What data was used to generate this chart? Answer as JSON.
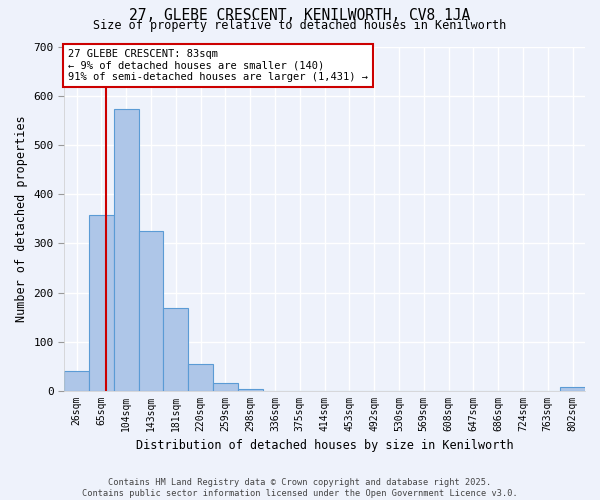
{
  "title": "27, GLEBE CRESCENT, KENILWORTH, CV8 1JA",
  "subtitle": "Size of property relative to detached houses in Kenilworth",
  "xlabel": "Distribution of detached houses by size in Kenilworth",
  "ylabel": "Number of detached properties",
  "bar_labels": [
    "26sqm",
    "65sqm",
    "104sqm",
    "143sqm",
    "181sqm",
    "220sqm",
    "259sqm",
    "298sqm",
    "336sqm",
    "375sqm",
    "414sqm",
    "453sqm",
    "492sqm",
    "530sqm",
    "569sqm",
    "608sqm",
    "647sqm",
    "686sqm",
    "724sqm",
    "763sqm",
    "802sqm"
  ],
  "bar_values": [
    40,
    357,
    573,
    325,
    168,
    55,
    16,
    5,
    0,
    0,
    0,
    0,
    0,
    0,
    0,
    0,
    0,
    0,
    0,
    0,
    8
  ],
  "bar_color": "#aec6e8",
  "bar_edge_color": "#5b9bd5",
  "vline_x": 1.18,
  "vline_color": "#cc0000",
  "annotation_text": "27 GLEBE CRESCENT: 83sqm\n← 9% of detached houses are smaller (140)\n91% of semi-detached houses are larger (1,431) →",
  "annotation_box_color": "#ffffff",
  "annotation_box_edge": "#cc0000",
  "ylim": [
    0,
    700
  ],
  "yticks": [
    0,
    100,
    200,
    300,
    400,
    500,
    600,
    700
  ],
  "background_color": "#eef2fb",
  "grid_color": "#ffffff",
  "footer": "Contains HM Land Registry data © Crown copyright and database right 2025.\nContains public sector information licensed under the Open Government Licence v3.0."
}
